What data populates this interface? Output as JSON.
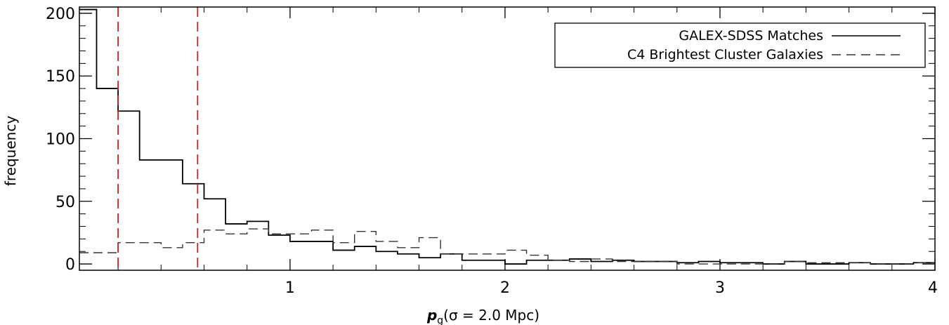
{
  "chart_data": {
    "type": "histogram",
    "title": "",
    "xlabel_main": "p",
    "xlabel_sub": "g",
    "xlabel_rest": "(σ = 2.0 Mpc)",
    "ylabel": "frequency",
    "xlim": [
      0.02,
      4.0
    ],
    "ylim": [
      -5,
      205
    ],
    "xticks": [
      1,
      2,
      3,
      4
    ],
    "xtick_labels": [
      "1",
      "2",
      "3",
      "4"
    ],
    "yticks": [
      0,
      50,
      100,
      150,
      200
    ],
    "ytick_labels": [
      "0",
      "50",
      "100",
      "150",
      "200"
    ],
    "x_minor_step": 0.2,
    "y_minor_step": 10,
    "legend": {
      "placement": "top-right",
      "entries": [
        {
          "label": "GALEX-SDSS Matches",
          "style": "solid"
        },
        {
          "label": "C4 Brightest Cluster Galaxies",
          "style": "dashed"
        }
      ]
    },
    "vertical_lines": [
      {
        "x": 0.2,
        "color": "#cc2222",
        "style": "dashed"
      },
      {
        "x": 0.57,
        "color": "#cc2222",
        "style": "dashed"
      }
    ],
    "series": [
      {
        "name": "GALEX-SDSS Matches",
        "style": "solid",
        "color": "#000000",
        "edges": [
          0.0,
          0.1,
          0.2,
          0.3,
          0.4,
          0.5,
          0.6,
          0.7,
          0.8,
          0.9,
          1.0,
          1.1,
          1.2,
          1.3,
          1.4,
          1.5,
          1.6,
          1.7,
          1.8,
          1.9,
          2.0,
          2.1,
          2.2,
          2.3,
          2.4,
          2.5,
          2.6,
          2.7,
          2.8,
          2.9,
          3.0,
          3.1,
          3.2,
          3.3,
          3.4,
          3.5,
          3.6,
          3.7,
          3.8,
          3.9,
          4.0
        ],
        "values": [
          203,
          140,
          122,
          83,
          83,
          64,
          52,
          32,
          34,
          23,
          18,
          18,
          11,
          14,
          10,
          8,
          5,
          8,
          3,
          3,
          0,
          3,
          3,
          4,
          2,
          3,
          2,
          2,
          1,
          2,
          1,
          1,
          0,
          2,
          0,
          0,
          1,
          0,
          0,
          1
        ]
      },
      {
        "name": "C4 Brightest Cluster Galaxies",
        "style": "dashed",
        "color": "#333333",
        "edges": [
          0.0,
          0.1,
          0.2,
          0.3,
          0.4,
          0.5,
          0.6,
          0.7,
          0.8,
          0.9,
          1.0,
          1.1,
          1.2,
          1.3,
          1.4,
          1.5,
          1.6,
          1.7,
          1.8,
          1.9,
          2.0,
          2.1,
          2.2,
          2.3,
          2.4,
          2.5,
          2.6,
          2.7,
          2.8,
          2.9,
          3.0,
          3.1,
          3.2,
          3.3,
          3.4,
          3.5,
          3.6,
          3.7,
          3.8,
          3.9,
          4.0
        ],
        "values": [
          9,
          9,
          17,
          17,
          13,
          17,
          27,
          24,
          28,
          24,
          24,
          27,
          17,
          26,
          18,
          13,
          21,
          8,
          8,
          8,
          11,
          7,
          3,
          2,
          4,
          2,
          2,
          2,
          0,
          0,
          0,
          0,
          0,
          2,
          1,
          1,
          1,
          0,
          0,
          1
        ]
      }
    ]
  }
}
